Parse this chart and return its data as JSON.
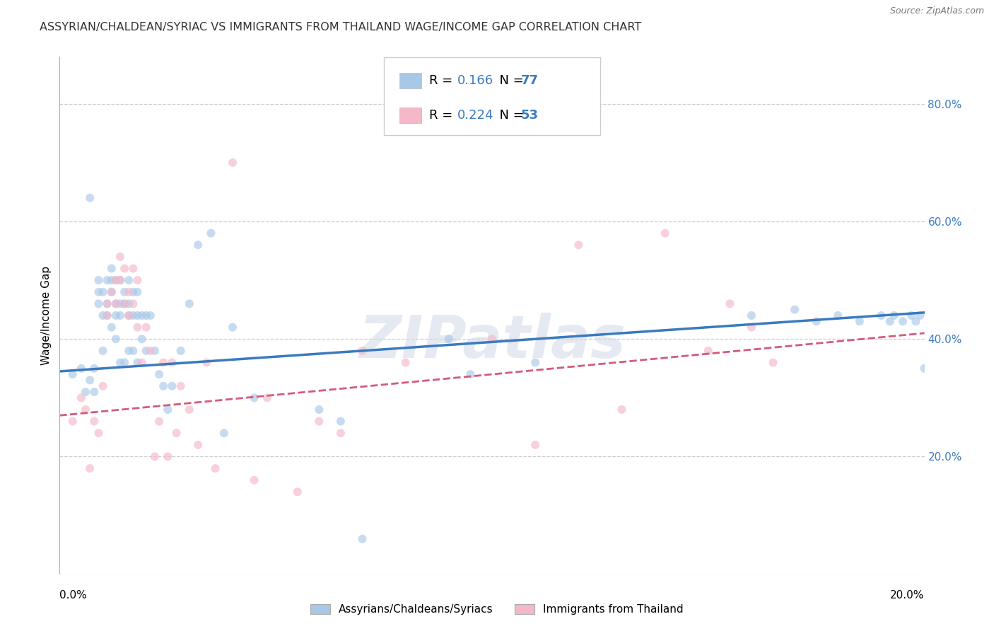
{
  "title": "ASSYRIAN/CHALDEAN/SYRIAC VS IMMIGRANTS FROM THAILAND WAGE/INCOME GAP CORRELATION CHART",
  "source": "Source: ZipAtlas.com",
  "ylabel": "Wage/Income Gap",
  "yticks_right": [
    "80.0%",
    "60.0%",
    "40.0%",
    "20.0%"
  ],
  "yticks_right_vals": [
    0.8,
    0.6,
    0.4,
    0.2
  ],
  "xlim": [
    0.0,
    0.2
  ],
  "ylim": [
    0.0,
    0.88
  ],
  "blue_color": "#a8c8e8",
  "pink_color": "#f4b8c8",
  "blue_line_color": "#3a7abf",
  "pink_line_color": "#d45a7a",
  "legend_r1_val": "0.166",
  "legend_n1_val": "77",
  "legend_r2_val": "0.224",
  "legend_n2_val": "53",
  "label_blue": "Assyrians/Chaldeans/Syriacs",
  "label_pink": "Immigrants from Thailand",
  "watermark": "ZIPatlas",
  "blue_text_color": "#3a7abf",
  "blue_scatter_x": [
    0.003,
    0.005,
    0.006,
    0.007,
    0.007,
    0.008,
    0.008,
    0.009,
    0.009,
    0.009,
    0.01,
    0.01,
    0.01,
    0.011,
    0.011,
    0.011,
    0.012,
    0.012,
    0.012,
    0.012,
    0.013,
    0.013,
    0.013,
    0.013,
    0.014,
    0.014,
    0.014,
    0.014,
    0.015,
    0.015,
    0.015,
    0.016,
    0.016,
    0.016,
    0.016,
    0.017,
    0.017,
    0.017,
    0.018,
    0.018,
    0.018,
    0.019,
    0.019,
    0.02,
    0.02,
    0.021,
    0.022,
    0.023,
    0.024,
    0.025,
    0.026,
    0.028,
    0.03,
    0.032,
    0.035,
    0.038,
    0.04,
    0.045,
    0.06,
    0.065,
    0.07,
    0.09,
    0.095,
    0.11,
    0.16,
    0.17,
    0.175,
    0.18,
    0.185,
    0.19,
    0.192,
    0.193,
    0.195,
    0.197,
    0.198,
    0.199,
    0.2
  ],
  "blue_scatter_y": [
    0.34,
    0.35,
    0.31,
    0.64,
    0.33,
    0.35,
    0.31,
    0.5,
    0.48,
    0.46,
    0.48,
    0.44,
    0.38,
    0.5,
    0.46,
    0.44,
    0.52,
    0.5,
    0.48,
    0.42,
    0.5,
    0.46,
    0.44,
    0.4,
    0.5,
    0.46,
    0.44,
    0.36,
    0.48,
    0.46,
    0.36,
    0.5,
    0.46,
    0.44,
    0.38,
    0.48,
    0.44,
    0.38,
    0.48,
    0.44,
    0.36,
    0.44,
    0.4,
    0.44,
    0.38,
    0.44,
    0.38,
    0.34,
    0.32,
    0.28,
    0.32,
    0.38,
    0.46,
    0.56,
    0.58,
    0.24,
    0.42,
    0.3,
    0.28,
    0.26,
    0.06,
    0.4,
    0.34,
    0.36,
    0.44,
    0.45,
    0.43,
    0.44,
    0.43,
    0.44,
    0.43,
    0.44,
    0.43,
    0.44,
    0.43,
    0.44,
    0.35
  ],
  "pink_scatter_x": [
    0.003,
    0.005,
    0.006,
    0.007,
    0.008,
    0.009,
    0.01,
    0.011,
    0.011,
    0.012,
    0.013,
    0.013,
    0.014,
    0.014,
    0.015,
    0.015,
    0.016,
    0.016,
    0.017,
    0.017,
    0.018,
    0.018,
    0.019,
    0.02,
    0.021,
    0.022,
    0.023,
    0.024,
    0.025,
    0.026,
    0.027,
    0.028,
    0.03,
    0.032,
    0.034,
    0.036,
    0.04,
    0.045,
    0.048,
    0.055,
    0.06,
    0.065,
    0.07,
    0.08,
    0.1,
    0.11,
    0.12,
    0.13,
    0.14,
    0.15,
    0.155,
    0.16,
    0.165
  ],
  "pink_scatter_y": [
    0.26,
    0.3,
    0.28,
    0.18,
    0.26,
    0.24,
    0.32,
    0.46,
    0.44,
    0.48,
    0.5,
    0.46,
    0.54,
    0.5,
    0.52,
    0.46,
    0.48,
    0.44,
    0.52,
    0.46,
    0.5,
    0.42,
    0.36,
    0.42,
    0.38,
    0.2,
    0.26,
    0.36,
    0.2,
    0.36,
    0.24,
    0.32,
    0.28,
    0.22,
    0.36,
    0.18,
    0.7,
    0.16,
    0.3,
    0.14,
    0.26,
    0.24,
    0.38,
    0.36,
    0.4,
    0.22,
    0.56,
    0.28,
    0.58,
    0.38,
    0.46,
    0.42,
    0.36
  ],
  "blue_trend_x": [
    0.0,
    0.2
  ],
  "blue_trend_y": [
    0.345,
    0.445
  ],
  "pink_trend_x": [
    0.0,
    0.2
  ],
  "pink_trend_y": [
    0.27,
    0.41
  ],
  "background_color": "#ffffff",
  "grid_color": "#cccccc",
  "marker_size": 75,
  "marker_alpha": 0.65
}
